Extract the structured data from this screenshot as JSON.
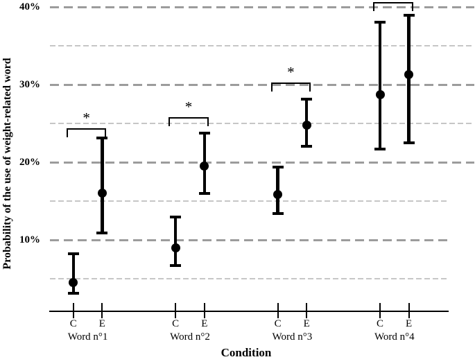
{
  "figure": {
    "background": "#ffffff"
  },
  "chart_data": {
    "type": "scatter",
    "subtype": "point-estimates-with-error-bars",
    "title": "",
    "xlabel": "Condition",
    "ylabel": "Probability of the use of weight-related word",
    "ylim": [
      1,
      41
    ],
    "grid": "horizontal-dashed",
    "legend": "none",
    "yticks": [
      {
        "value": 40,
        "label": "40%"
      },
      {
        "value": 30,
        "label": "30%"
      },
      {
        "value": 20,
        "label": "20%"
      },
      {
        "value": 10,
        "label": "10%"
      }
    ],
    "minor_gridlines": [
      35,
      25,
      15,
      5
    ],
    "conditions": [
      "C",
      "E"
    ],
    "groups": [
      {
        "label": "Word n°1",
        "points": [
          {
            "condition": "C",
            "mean": 4.5,
            "ci_low": 3.1,
            "ci_high": 8.2
          },
          {
            "condition": "E",
            "mean": 16.0,
            "ci_low": 10.9,
            "ci_high": 23.1
          }
        ],
        "significance": {
          "symbol": "*",
          "bracket_y": 24.4
        }
      },
      {
        "label": "Word n°2",
        "points": [
          {
            "condition": "C",
            "mean": 9.0,
            "ci_low": 6.7,
            "ci_high": 13.0
          },
          {
            "condition": "E",
            "mean": 19.5,
            "ci_low": 16.0,
            "ci_high": 23.8
          }
        ],
        "significance": {
          "symbol": "*",
          "bracket_y": 25.8
        }
      },
      {
        "label": "Word n°3",
        "points": [
          {
            "condition": "C",
            "mean": 15.9,
            "ci_low": 13.4,
            "ci_high": 19.4
          },
          {
            "condition": "E",
            "mean": 24.8,
            "ci_low": 22.1,
            "ci_high": 28.1
          }
        ],
        "significance": {
          "symbol": "*",
          "bracket_y": 30.3
        }
      },
      {
        "label": "Word n°4",
        "points": [
          {
            "condition": "C",
            "mean": 28.7,
            "ci_low": 21.7,
            "ci_high": 38.0
          },
          {
            "condition": "E",
            "mean": 31.3,
            "ci_low": 22.5,
            "ci_high": 38.9
          }
        ],
        "significance": {
          "symbol": "",
          "bracket_y": 40.65
        }
      }
    ],
    "colors": {
      "point": "#000000",
      "axis": "#000000",
      "major_gridline": "#9c9c9c",
      "minor_gridline": "#c6c6c6"
    }
  }
}
